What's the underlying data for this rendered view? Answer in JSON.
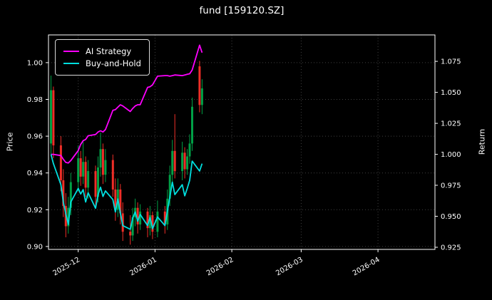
{
  "figure": {
    "title": "fund [159120.SZ]",
    "background": "#000000",
    "text_color": "#ffffff"
  },
  "chart_data": {
    "type": "candlestick_with_lines",
    "title": "fund [159120.SZ]",
    "grid": "dotted",
    "legend_position": "upper-left",
    "colors": {
      "up_candle": "#00a046",
      "down_candle": "#ef2e27",
      "background": "#000000",
      "foreground": "#ffffff",
      "grid": "#777777"
    },
    "left_axis": {
      "label": "Price",
      "lim": [
        0.8984,
        1.0151
      ],
      "ticks": [
        0.9,
        0.92,
        0.94,
        0.96,
        0.98,
        1.0
      ],
      "tick_labels": [
        "0.90",
        "0.92",
        "0.94",
        "0.96",
        "0.98",
        "1.00"
      ]
    },
    "right_axis": {
      "label": "Return",
      "lim": [
        0.9233,
        1.0963
      ],
      "ticks": [
        0.925,
        0.95,
        0.975,
        1.0,
        1.025,
        1.05,
        1.075
      ],
      "tick_labels": [
        "0.925",
        "0.950",
        "0.975",
        "1.000",
        "1.025",
        "1.050",
        "1.075"
      ]
    },
    "x_axis": {
      "lim": [
        "2025-11-19",
        "2026-04-24"
      ],
      "ticks": [
        {
          "date": "2025-12-01",
          "label": "2025-12"
        },
        {
          "date": "2026-01-01",
          "label": "2026-01"
        },
        {
          "date": "2026-02-01",
          "label": "2026-02"
        },
        {
          "date": "2026-03-01",
          "label": "2026-03"
        },
        {
          "date": "2026-04-01",
          "label": "2026-04"
        }
      ]
    },
    "dates": [
      "2025-11-20",
      "2025-11-21",
      "2025-11-24",
      "2025-11-25",
      "2025-11-26",
      "2025-11-27",
      "2025-11-28",
      "2025-12-01",
      "2025-12-02",
      "2025-12-03",
      "2025-12-04",
      "2025-12-05",
      "2025-12-08",
      "2025-12-09",
      "2025-12-10",
      "2025-12-11",
      "2025-12-12",
      "2025-12-15",
      "2025-12-16",
      "2025-12-17",
      "2025-12-18",
      "2025-12-19",
      "2025-12-22",
      "2025-12-23",
      "2025-12-24",
      "2025-12-25",
      "2025-12-26",
      "2025-12-29",
      "2025-12-30",
      "2025-12-31",
      "2026-01-02",
      "2026-01-05",
      "2026-01-06",
      "2026-01-07",
      "2026-01-08",
      "2026-01-09",
      "2026-01-12",
      "2026-01-13",
      "2026-01-14",
      "2026-01-15",
      "2026-01-16",
      "2026-01-19",
      "2026-01-20"
    ],
    "candles": {
      "columns": [
        "open",
        "high",
        "low",
        "close"
      ],
      "rows": [
        [
          0.956,
          0.993,
          0.95,
          0.985
        ],
        [
          0.985,
          0.987,
          0.948,
          0.955
        ],
        [
          0.955,
          0.96,
          0.93,
          0.936
        ],
        [
          0.936,
          0.942,
          0.916,
          0.922
        ],
        [
          0.922,
          0.929,
          0.905,
          0.911
        ],
        [
          0.911,
          0.927,
          0.907,
          0.921
        ],
        [
          0.921,
          0.94,
          0.917,
          0.935
        ],
        [
          0.935,
          0.955,
          0.93,
          0.948
        ],
        [
          0.948,
          0.952,
          0.933,
          0.938
        ],
        [
          0.938,
          0.958,
          0.934,
          0.946
        ],
        [
          0.946,
          0.949,
          0.927,
          0.932
        ],
        [
          0.932,
          0.947,
          0.926,
          0.941
        ],
        [
          0.941,
          0.944,
          0.921,
          0.927
        ],
        [
          0.927,
          0.949,
          0.924,
          0.943
        ],
        [
          0.943,
          0.962,
          0.938,
          0.953
        ],
        [
          0.953,
          0.956,
          0.934,
          0.939
        ],
        [
          0.939,
          0.953,
          0.935,
          0.947
        ],
        [
          0.947,
          0.95,
          0.927,
          0.931
        ],
        [
          0.931,
          0.937,
          0.914,
          0.92
        ],
        [
          0.92,
          0.937,
          0.916,
          0.931
        ],
        [
          0.931,
          0.934,
          0.912,
          0.918
        ],
        [
          0.918,
          0.924,
          0.903,
          0.908
        ],
        [
          0.908,
          0.917,
          0.901,
          0.906
        ],
        [
          0.906,
          0.921,
          0.903,
          0.916
        ],
        [
          0.916,
          0.926,
          0.911,
          0.921
        ],
        [
          0.921,
          0.924,
          0.907,
          0.912
        ],
        [
          0.912,
          0.923,
          0.909,
          0.919
        ],
        [
          0.919,
          0.921,
          0.905,
          0.91
        ],
        [
          0.91,
          0.922,
          0.906,
          0.917
        ],
        [
          0.917,
          0.919,
          0.904,
          0.908
        ],
        [
          0.908,
          0.925,
          0.905,
          0.919
        ],
        [
          0.919,
          0.922,
          0.907,
          0.912
        ],
        [
          0.912,
          0.931,
          0.909,
          0.926
        ],
        [
          0.926,
          0.944,
          0.922,
          0.939
        ],
        [
          0.939,
          0.958,
          0.935,
          0.952
        ],
        [
          0.952,
          0.972,
          0.937,
          0.941
        ],
        [
          0.941,
          0.957,
          0.936,
          0.951
        ],
        [
          0.951,
          0.954,
          0.937,
          0.942
        ],
        [
          0.942,
          0.953,
          0.939,
          0.949
        ],
        [
          0.949,
          0.961,
          0.945,
          0.956
        ],
        [
          0.956,
          0.981,
          0.952,
          0.976
        ],
        [
          0.998,
          1.001,
          0.973,
          0.977
        ],
        [
          0.977,
          0.991,
          0.972,
          0.986
        ]
      ]
    },
    "series": [
      {
        "name": "AI Strategy",
        "color": "#ff00ff",
        "axis": "right",
        "values": [
          1.0,
          1.0,
          0.999,
          0.996,
          0.9935,
          0.993,
          0.995,
          1.003,
          1.008,
          1.011,
          1.012,
          1.015,
          1.016,
          1.018,
          1.019,
          1.018,
          1.02,
          1.0355,
          1.036,
          1.038,
          1.04,
          1.039,
          1.0345,
          1.037,
          1.039,
          1.04,
          1.04,
          1.054,
          1.0545,
          1.056,
          1.063,
          1.0635,
          1.0635,
          1.063,
          1.0635,
          1.064,
          1.0635,
          1.064,
          1.0645,
          1.065,
          1.068,
          1.088,
          1.082
        ]
      },
      {
        "name": "Buy-and-Hold",
        "color": "#00dede",
        "axis": "right",
        "values": [
          1.0,
          0.9925,
          0.9755,
          0.9615,
          0.952,
          0.9435,
          0.9615,
          0.9725,
          0.968,
          0.9715,
          0.9615,
          0.969,
          0.9565,
          0.9675,
          0.9735,
          0.966,
          0.9705,
          0.9635,
          0.9535,
          0.964,
          0.9525,
          0.9425,
          0.9395,
          0.9485,
          0.9535,
          0.946,
          0.9515,
          0.9425,
          0.949,
          0.94,
          0.9495,
          0.9425,
          0.9545,
          0.9655,
          0.9775,
          0.9675,
          0.9755,
          0.9665,
          0.9725,
          0.979,
          0.9945,
          0.9865,
          0.9925
        ]
      }
    ]
  }
}
